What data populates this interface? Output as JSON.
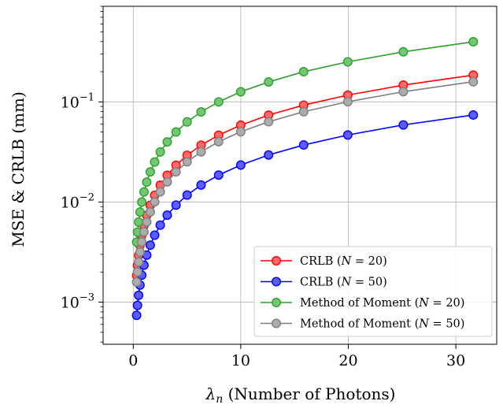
{
  "chart_data": {
    "type": "line",
    "xlabel": "λn (Number of Photons)",
    "ylabel": "MSE & CRLB (mm)",
    "xscale": "linear",
    "yscale": "log",
    "xlim": [
      -2.8,
      33.8
    ],
    "ylim": [
      0.00038,
      0.9
    ],
    "x_ticks": [
      0,
      10,
      20,
      30
    ],
    "y_ticks": [
      0.001,
      0.01,
      0.1
    ],
    "y_tick_labels": [
      "10−3",
      "10−2",
      "10−1"
    ],
    "grid": true,
    "legend_position": "lower-right",
    "x": [
      0.316,
      0.398,
      0.501,
      0.631,
      0.794,
      1.0,
      1.259,
      1.585,
      1.995,
      2.512,
      3.162,
      3.981,
      5.012,
      6.31,
      7.943,
      10.0,
      12.589,
      15.849,
      19.953,
      25.119,
      31.623
    ],
    "series": [
      {
        "name": "CRLB (N = 20)",
        "color": "#ff0000",
        "fill": "#ff6b6b",
        "values": [
          0.00185,
          0.00233,
          0.00293,
          0.00369,
          0.00465,
          0.00585,
          0.00737,
          0.00928,
          0.01168,
          0.0147,
          0.0185,
          0.0233,
          0.0293,
          0.0369,
          0.0465,
          0.0585,
          0.0737,
          0.0928,
          0.1168,
          0.147,
          0.185
        ]
      },
      {
        "name": "CRLB (N = 50)",
        "color": "#0000ff",
        "fill": "#5c5cff",
        "values": [
          0.00074,
          0.00093,
          0.00117,
          0.00148,
          0.00186,
          0.00234,
          0.00295,
          0.00371,
          0.00467,
          0.00588,
          0.0074,
          0.00932,
          0.01173,
          0.01477,
          0.01859,
          0.0234,
          0.0295,
          0.0371,
          0.0467,
          0.0588,
          0.074
        ]
      },
      {
        "name": "Method of Moment (N = 20)",
        "color": "#2ca02c",
        "fill": "#73c773",
        "values": [
          0.00398,
          0.00501,
          0.00631,
          0.00794,
          0.01,
          0.0126,
          0.0158,
          0.02,
          0.0251,
          0.0316,
          0.0398,
          0.0501,
          0.0631,
          0.0794,
          0.1,
          0.126,
          0.158,
          0.2,
          0.251,
          0.316,
          0.398
        ]
      },
      {
        "name": "Method of Moment (N = 50)",
        "color": "#7f7f7f",
        "fill": "#acacac",
        "values": [
          0.00159,
          0.002,
          0.00252,
          0.00317,
          0.004,
          0.00503,
          0.00633,
          0.00797,
          0.01003,
          0.01263,
          0.0159,
          0.02,
          0.0252,
          0.0317,
          0.04,
          0.0503,
          0.0633,
          0.0797,
          0.1003,
          0.1263,
          0.159
        ]
      }
    ]
  }
}
